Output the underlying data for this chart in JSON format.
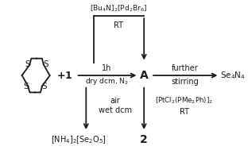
{
  "bg_color": "#f0f0f0",
  "text_color": "#1a1a1a",
  "arrow_color": "#1a1a1a",
  "title": "",
  "reagent_top": "[Bu₄N]₂[Pd₂Br₆]",
  "rt_top": "RT",
  "label_1h": "1h",
  "label_dcm": "dry dcm, N₂",
  "label_further": "further",
  "label_stirring": "stirring",
  "label_air": "air",
  "label_wet": "wet dcm",
  "label_A": "A",
  "label_2": "2",
  "label_Se4N4": "Se₄N₄",
  "label_NH4": "[NH₄]₂[Se₂O₅]",
  "label_PtCl2": "[PtCl₂(PMe₂Ph)]₂",
  "label_RT2": "RT",
  "label_plus1": "+1"
}
